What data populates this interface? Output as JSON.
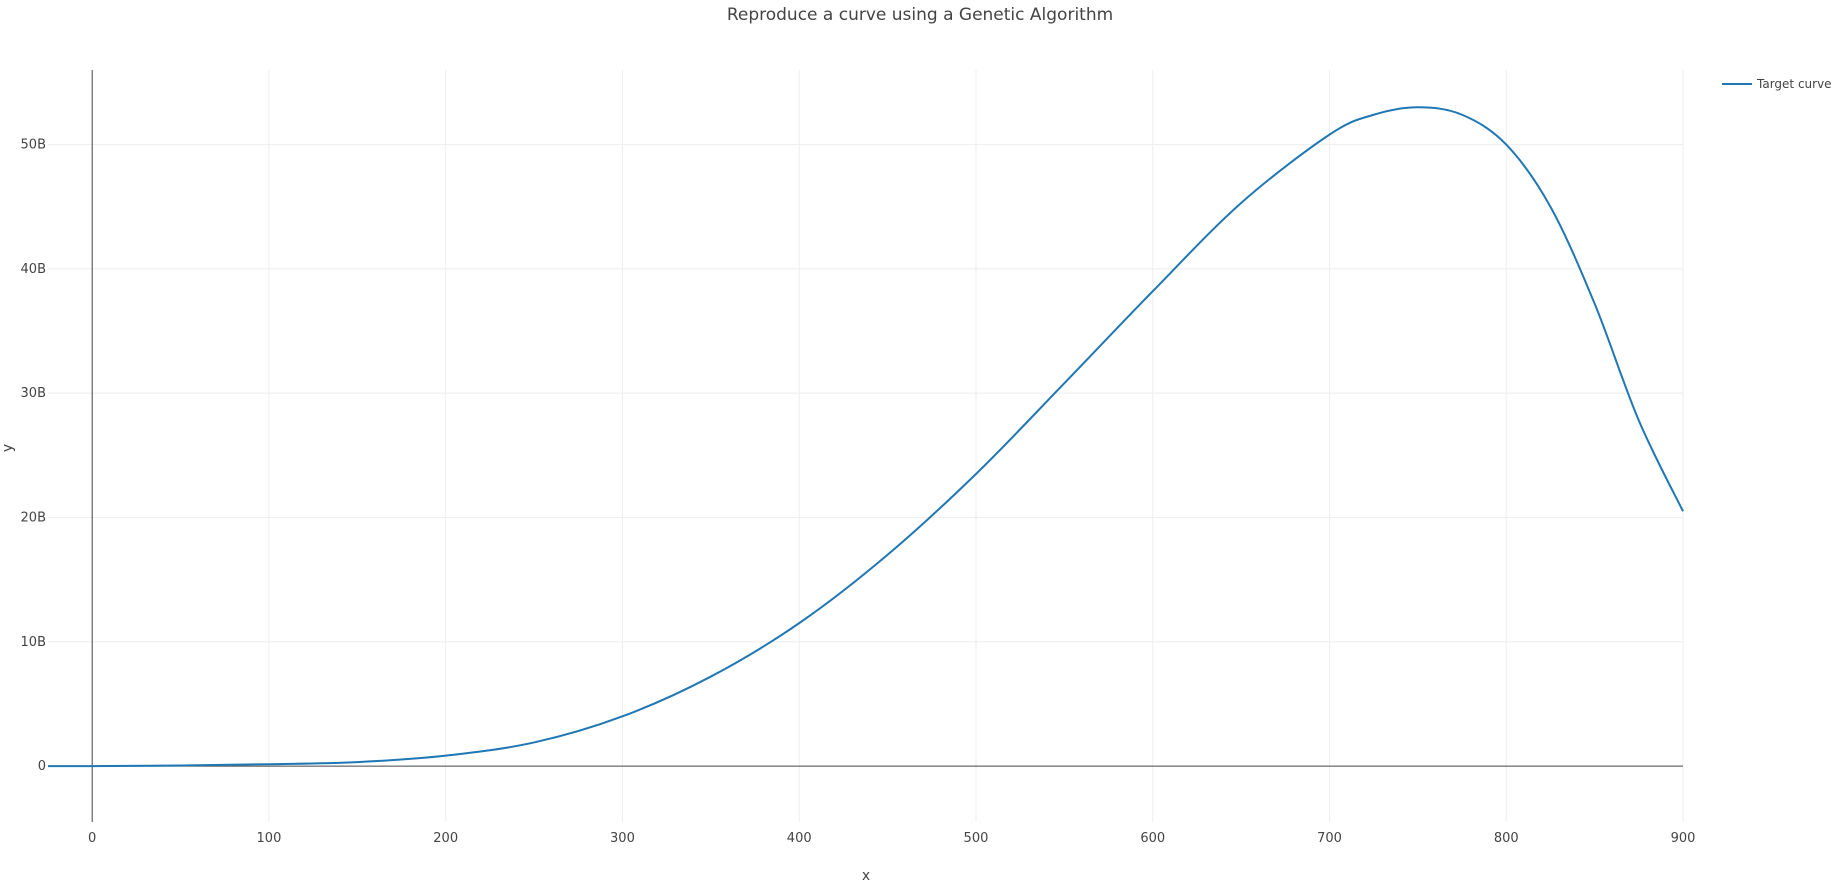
{
  "chart_data": {
    "type": "line",
    "title": "Reproduce a curve using a Genetic Algorithm",
    "xlabel": "x",
    "ylabel": "y",
    "xlim": [
      -25,
      900
    ],
    "ylim": [
      -4500000000,
      56000000000
    ],
    "x_ticks": [
      0,
      100,
      200,
      300,
      400,
      500,
      600,
      700,
      800,
      900
    ],
    "x_tick_labels": [
      "0",
      "100",
      "200",
      "300",
      "400",
      "500",
      "600",
      "700",
      "800",
      "900"
    ],
    "y_ticks": [
      0,
      10000000000,
      20000000000,
      30000000000,
      40000000000,
      50000000000
    ],
    "y_tick_labels": [
      "0",
      "10B",
      "20B",
      "30B",
      "40B",
      "50B"
    ],
    "grid": true,
    "legend_position": "top-right",
    "series": [
      {
        "name": "Target curve",
        "color": "#1f77b4",
        "x": [
          -25,
          0,
          50,
          100,
          150,
          200,
          250,
          300,
          350,
          400,
          450,
          500,
          550,
          600,
          650,
          700,
          725,
          750,
          775,
          800,
          825,
          850,
          875,
          900
        ],
        "y": [
          0,
          0,
          50000000,
          150000000,
          320000000,
          840000000,
          1900000000,
          4000000000,
          7200000000,
          11500000000,
          17000000000,
          23500000000,
          30800000000,
          38200000000,
          45300000000,
          50800000000,
          52400000000,
          53000000000,
          52400000000,
          50000000000,
          45000000000,
          37200000000,
          27800000000,
          20500000000
        ]
      }
    ]
  }
}
